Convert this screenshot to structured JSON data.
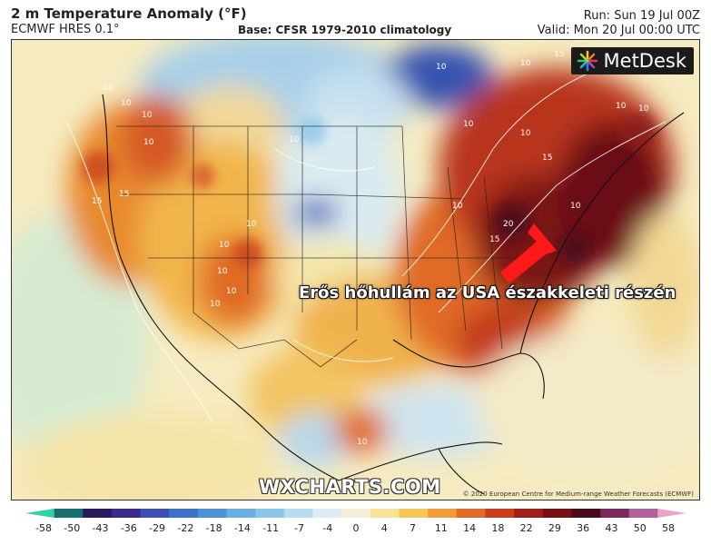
{
  "header": {
    "title": "2 m Temperature Anomaly (°F)",
    "model": "ECMWF HRES 0.1°",
    "base": "Base: CFSR 1979-2010 climatology",
    "run": "Run: Sun 19 Jul 00Z",
    "valid": "Valid: Mon 20 Jul 00:00 UTC"
  },
  "map": {
    "brand": "MetDesk",
    "caption": "Erős hőhullám az USA északkeleti részén",
    "watermark": "WXCHARTS.COM",
    "copyright": "© 2020 European Centre for Medium-range Weather Forecasts (ECMWF)",
    "contour_labels": [
      "10",
      "10",
      "15",
      "10",
      "10",
      "10",
      "10",
      "10",
      "10",
      "15",
      "15",
      "10",
      "20",
      "15",
      "10",
      "10",
      "10",
      "10",
      "10",
      "10",
      "10",
      "15",
      "10",
      "10",
      "10"
    ]
  },
  "legend": {
    "ticks": [
      "-58",
      "-50",
      "-43",
      "-36",
      "-29",
      "-22",
      "-18",
      "-14",
      "-11",
      "-7",
      "-4",
      "0",
      "4",
      "7",
      "11",
      "14",
      "18",
      "22",
      "29",
      "36",
      "43",
      "50",
      "58"
    ],
    "colors": [
      "#2fd0a2",
      "#1a6e6e",
      "#2a1a5a",
      "#3b2a8a",
      "#3e4fb0",
      "#3d72c4",
      "#4e92d2",
      "#6aaede",
      "#8ec6e8",
      "#b7dcee",
      "#dcecf2",
      "#f5f0d8",
      "#f7e49a",
      "#f4c75a",
      "#ee9d3a",
      "#e06a28",
      "#c93d1c",
      "#a01f1b",
      "#741218",
      "#4a0c1c",
      "#7a2a5a",
      "#b0609a",
      "#e8a4cc"
    ]
  }
}
